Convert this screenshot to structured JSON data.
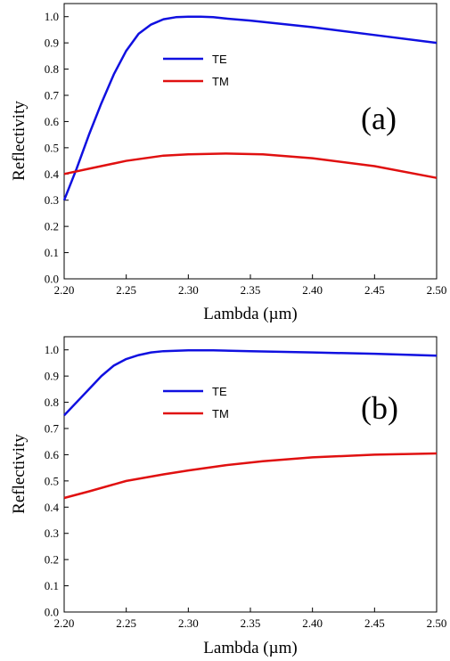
{
  "chart_data": [
    {
      "type": "line",
      "panel_label": "(a)",
      "xlabel": "Lambda (µm)",
      "ylabel": "Reflectivity",
      "xlim": [
        2.2,
        2.5
      ],
      "ylim": [
        0.0,
        1.05
      ],
      "xticks": [
        "2.20",
        "2.25",
        "2.30",
        "2.35",
        "2.40",
        "2.45",
        "2.50"
      ],
      "yticks": [
        "0.0",
        "0.1",
        "0.2",
        "0.3",
        "0.4",
        "0.5",
        "0.6",
        "0.7",
        "0.8",
        "0.9",
        "1.0"
      ],
      "legend_position": "upper-center",
      "series": [
        {
          "name": "TE",
          "color": "#1010e0",
          "x": [
            2.2,
            2.21,
            2.22,
            2.23,
            2.24,
            2.25,
            2.26,
            2.27,
            2.28,
            2.29,
            2.3,
            2.31,
            2.32,
            2.33,
            2.35,
            2.4,
            2.45,
            2.5
          ],
          "y": [
            0.3,
            0.42,
            0.55,
            0.67,
            0.78,
            0.87,
            0.935,
            0.97,
            0.99,
            0.998,
            1.0,
            1.0,
            0.998,
            0.993,
            0.985,
            0.96,
            0.93,
            0.9
          ]
        },
        {
          "name": "TM",
          "color": "#e01010",
          "x": [
            2.2,
            2.22,
            2.25,
            2.28,
            2.3,
            2.33,
            2.36,
            2.4,
            2.45,
            2.5
          ],
          "y": [
            0.4,
            0.42,
            0.45,
            0.47,
            0.475,
            0.478,
            0.475,
            0.46,
            0.43,
            0.385
          ]
        }
      ]
    },
    {
      "type": "line",
      "panel_label": "(b)",
      "xlabel": "Lambda (µm)",
      "ylabel": "Reflectivity",
      "xlim": [
        2.2,
        2.5
      ],
      "ylim": [
        0.0,
        1.05
      ],
      "xticks": [
        "2.20",
        "2.25",
        "2.30",
        "2.35",
        "2.40",
        "2.45",
        "2.50"
      ],
      "yticks": [
        "0.0",
        "0.1",
        "0.2",
        "0.3",
        "0.4",
        "0.5",
        "0.6",
        "0.7",
        "0.8",
        "0.9",
        "1.0"
      ],
      "legend_position": "upper-center",
      "series": [
        {
          "name": "TE",
          "color": "#1010e0",
          "x": [
            2.2,
            2.21,
            2.22,
            2.23,
            2.24,
            2.25,
            2.26,
            2.27,
            2.28,
            2.3,
            2.32,
            2.35,
            2.4,
            2.45,
            2.5
          ],
          "y": [
            0.75,
            0.8,
            0.85,
            0.9,
            0.94,
            0.965,
            0.98,
            0.99,
            0.995,
            0.998,
            0.998,
            0.995,
            0.99,
            0.985,
            0.978
          ]
        },
        {
          "name": "TM",
          "color": "#e01010",
          "x": [
            2.2,
            2.22,
            2.25,
            2.28,
            2.3,
            2.33,
            2.36,
            2.4,
            2.45,
            2.5
          ],
          "y": [
            0.435,
            0.46,
            0.5,
            0.525,
            0.54,
            0.56,
            0.575,
            0.59,
            0.6,
            0.605
          ]
        }
      ]
    }
  ]
}
